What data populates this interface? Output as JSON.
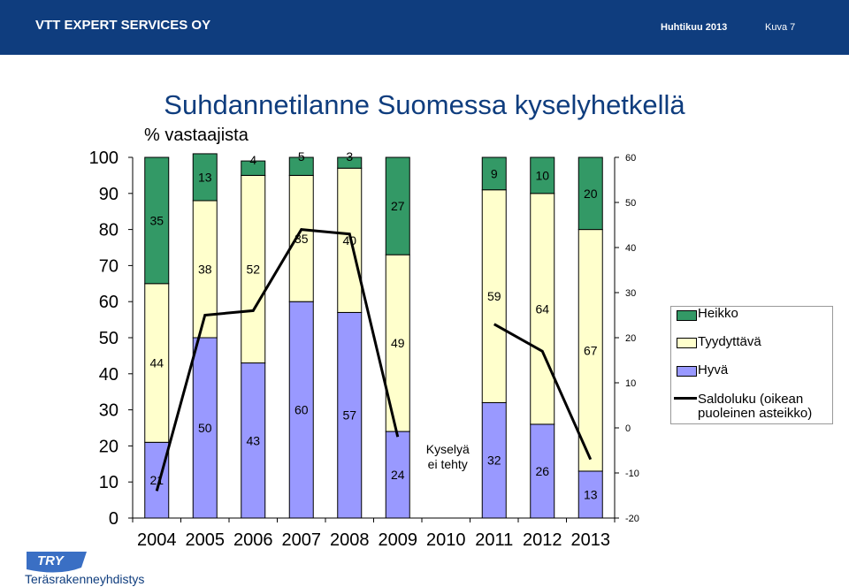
{
  "header": {
    "company": "VTT EXPERT SERVICES OY",
    "date": "Huhtikuu 2013",
    "page": "Kuva 7",
    "bar_color": "#0f3d7e"
  },
  "footer": {
    "logo_text": "TRY",
    "org_name": "Teräsrakenneyhdistys"
  },
  "chart_data": {
    "type": "bar",
    "stacked": true,
    "title": "Suhdannetilanne Suomessa kyselyhetkellä",
    "ylabel": "% vastaajista",
    "categories": [
      "2004",
      "2005",
      "2006",
      "2007",
      "2008",
      "2009",
      "2010",
      "2011",
      "2012",
      "2013"
    ],
    "ylim": [
      0,
      100
    ],
    "y_ticks": [
      "0",
      "10",
      "20",
      "30",
      "40",
      "50",
      "60",
      "70",
      "80",
      "90",
      "100"
    ],
    "y2lim": [
      -20,
      60
    ],
    "y2_ticks": [
      "-20",
      "-10",
      "0",
      "10",
      "20",
      "30",
      "40",
      "50",
      "60"
    ],
    "series": [
      {
        "name": "Hyvä",
        "color": "#9999ff",
        "values": [
          21,
          50,
          43,
          60,
          57,
          24,
          null,
          32,
          26,
          13
        ]
      },
      {
        "name": "Tyydyttävä",
        "color": "#ffffcc",
        "values": [
          44,
          38,
          52,
          35,
          40,
          49,
          null,
          59,
          64,
          67
        ]
      },
      {
        "name": "Heikko",
        "color": "#339966",
        "values": [
          35,
          13,
          4,
          5,
          3,
          27,
          null,
          9,
          10,
          20
        ]
      }
    ],
    "line_series": {
      "name": "Saldoluku (oikean puoleinen asteikko)",
      "axis": "right",
      "values": [
        -14,
        25,
        26,
        44,
        43,
        -2,
        null,
        23,
        17,
        -7
      ]
    },
    "annotations": [
      {
        "category": "2010",
        "text_lines": [
          "Kyselyä",
          "ei tehty"
        ]
      }
    ],
    "legend": {
      "position": "right",
      "entries": [
        "Heikko",
        "Tyydyttävä",
        "Hyvä",
        "Saldoluku (oikean puoleinen asteikko)"
      ]
    },
    "grid": false
  }
}
